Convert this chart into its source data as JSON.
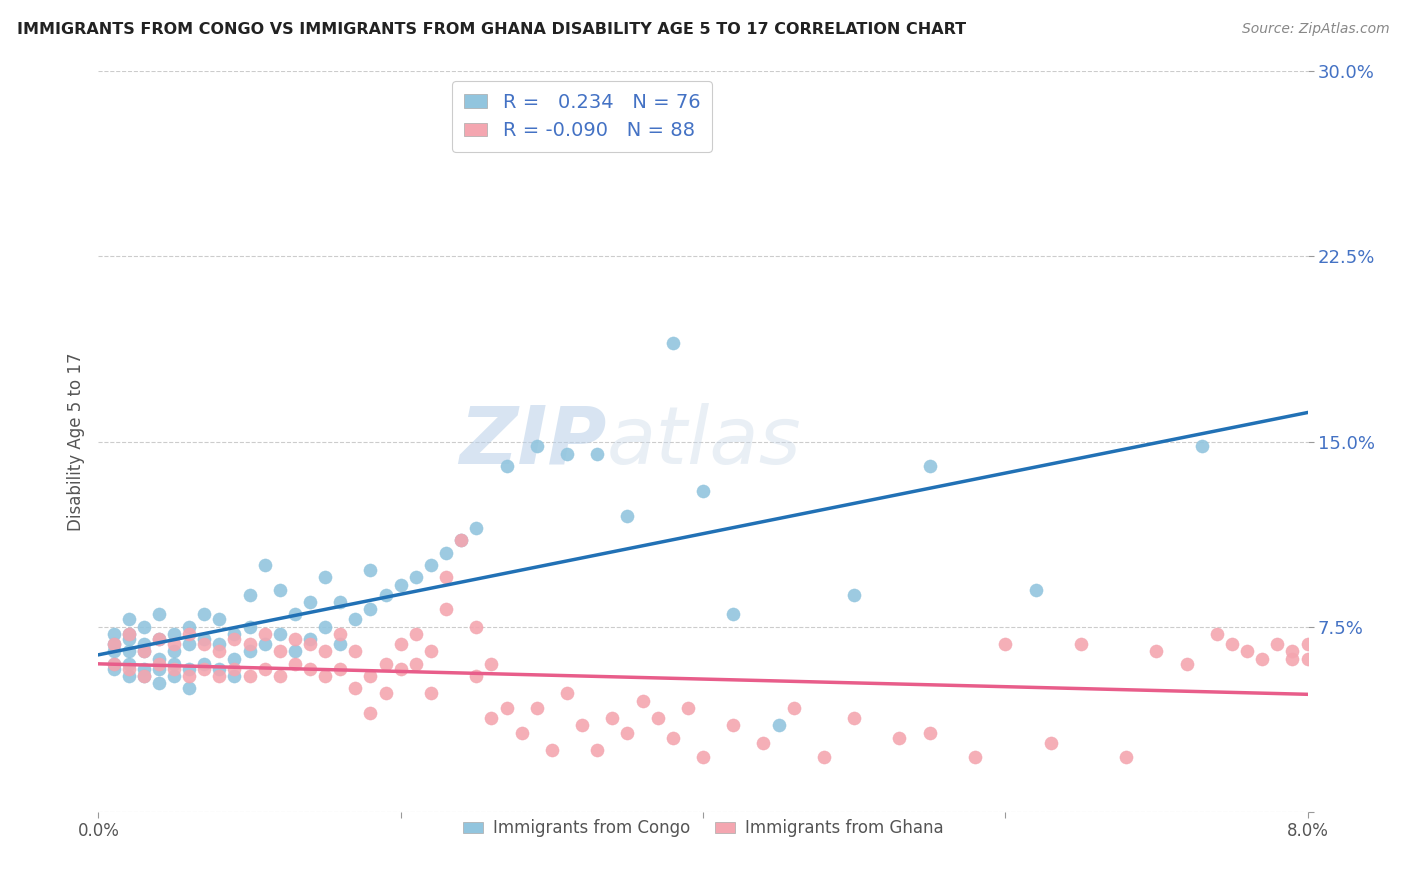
{
  "title": "IMMIGRANTS FROM CONGO VS IMMIGRANTS FROM GHANA DISABILITY AGE 5 TO 17 CORRELATION CHART",
  "source": "Source: ZipAtlas.com",
  "ylabel": "Disability Age 5 to 17",
  "xlim": [
    0.0,
    0.08
  ],
  "ylim": [
    0.0,
    0.3
  ],
  "x_ticks": [
    0.0,
    0.02,
    0.04,
    0.06,
    0.08
  ],
  "x_tick_labels": [
    "0.0%",
    "",
    "",
    "",
    "8.0%"
  ],
  "y_ticks": [
    0.0,
    0.075,
    0.15,
    0.225,
    0.3
  ],
  "y_tick_labels": [
    "",
    "7.5%",
    "15.0%",
    "22.5%",
    "30.0%"
  ],
  "congo_color": "#92c5de",
  "ghana_color": "#f4a6b0",
  "congo_line_color": "#2171b5",
  "ghana_line_color": "#e85d8a",
  "congo_R": 0.234,
  "congo_N": 76,
  "ghana_R": -0.09,
  "ghana_N": 88,
  "legend_label_congo": "Immigrants from Congo",
  "legend_label_ghana": "Immigrants from Ghana",
  "background_color": "#ffffff",
  "watermark_zip": "ZIP",
  "watermark_atlas": "atlas",
  "congo_scatter_x": [
    0.001,
    0.001,
    0.001,
    0.001,
    0.001,
    0.002,
    0.002,
    0.002,
    0.002,
    0.002,
    0.002,
    0.003,
    0.003,
    0.003,
    0.003,
    0.003,
    0.004,
    0.004,
    0.004,
    0.004,
    0.004,
    0.005,
    0.005,
    0.005,
    0.005,
    0.006,
    0.006,
    0.006,
    0.006,
    0.007,
    0.007,
    0.007,
    0.008,
    0.008,
    0.008,
    0.009,
    0.009,
    0.009,
    0.01,
    0.01,
    0.01,
    0.011,
    0.011,
    0.012,
    0.012,
    0.013,
    0.013,
    0.014,
    0.014,
    0.015,
    0.015,
    0.016,
    0.016,
    0.017,
    0.018,
    0.018,
    0.019,
    0.02,
    0.021,
    0.022,
    0.023,
    0.024,
    0.025,
    0.027,
    0.029,
    0.031,
    0.033,
    0.035,
    0.038,
    0.04,
    0.042,
    0.045,
    0.05,
    0.055,
    0.062,
    0.073
  ],
  "congo_scatter_y": [
    0.068,
    0.072,
    0.06,
    0.065,
    0.058,
    0.055,
    0.065,
    0.072,
    0.06,
    0.07,
    0.078,
    0.058,
    0.068,
    0.055,
    0.075,
    0.065,
    0.052,
    0.062,
    0.07,
    0.058,
    0.08,
    0.055,
    0.065,
    0.072,
    0.06,
    0.058,
    0.068,
    0.075,
    0.05,
    0.06,
    0.07,
    0.08,
    0.058,
    0.068,
    0.078,
    0.062,
    0.072,
    0.055,
    0.065,
    0.075,
    0.088,
    0.068,
    0.1,
    0.072,
    0.09,
    0.065,
    0.08,
    0.07,
    0.085,
    0.075,
    0.095,
    0.068,
    0.085,
    0.078,
    0.082,
    0.098,
    0.088,
    0.092,
    0.095,
    0.1,
    0.105,
    0.11,
    0.115,
    0.14,
    0.148,
    0.145,
    0.145,
    0.12,
    0.19,
    0.13,
    0.08,
    0.035,
    0.088,
    0.14,
    0.09,
    0.148
  ],
  "ghana_scatter_x": [
    0.001,
    0.001,
    0.002,
    0.002,
    0.003,
    0.003,
    0.004,
    0.004,
    0.005,
    0.005,
    0.006,
    0.006,
    0.007,
    0.007,
    0.008,
    0.008,
    0.009,
    0.009,
    0.01,
    0.01,
    0.011,
    0.011,
    0.012,
    0.012,
    0.013,
    0.013,
    0.014,
    0.014,
    0.015,
    0.015,
    0.016,
    0.016,
    0.017,
    0.017,
    0.018,
    0.018,
    0.019,
    0.019,
    0.02,
    0.02,
    0.021,
    0.021,
    0.022,
    0.022,
    0.023,
    0.023,
    0.024,
    0.025,
    0.025,
    0.026,
    0.026,
    0.027,
    0.028,
    0.029,
    0.03,
    0.031,
    0.032,
    0.033,
    0.034,
    0.035,
    0.036,
    0.037,
    0.038,
    0.039,
    0.04,
    0.042,
    0.044,
    0.046,
    0.048,
    0.05,
    0.053,
    0.055,
    0.058,
    0.06,
    0.063,
    0.065,
    0.068,
    0.07,
    0.072,
    0.074,
    0.075,
    0.076,
    0.077,
    0.078,
    0.079,
    0.079,
    0.08,
    0.08
  ],
  "ghana_scatter_y": [
    0.068,
    0.06,
    0.072,
    0.058,
    0.065,
    0.055,
    0.07,
    0.06,
    0.068,
    0.058,
    0.072,
    0.055,
    0.068,
    0.058,
    0.065,
    0.055,
    0.07,
    0.058,
    0.068,
    0.055,
    0.072,
    0.058,
    0.065,
    0.055,
    0.07,
    0.06,
    0.068,
    0.058,
    0.065,
    0.055,
    0.072,
    0.058,
    0.065,
    0.05,
    0.055,
    0.04,
    0.06,
    0.048,
    0.068,
    0.058,
    0.072,
    0.06,
    0.065,
    0.048,
    0.082,
    0.095,
    0.11,
    0.075,
    0.055,
    0.06,
    0.038,
    0.042,
    0.032,
    0.042,
    0.025,
    0.048,
    0.035,
    0.025,
    0.038,
    0.032,
    0.045,
    0.038,
    0.03,
    0.042,
    0.022,
    0.035,
    0.028,
    0.042,
    0.022,
    0.038,
    0.03,
    0.032,
    0.022,
    0.068,
    0.028,
    0.068,
    0.022,
    0.065,
    0.06,
    0.072,
    0.068,
    0.065,
    0.062,
    0.068,
    0.062,
    0.065,
    0.062,
    0.068
  ]
}
